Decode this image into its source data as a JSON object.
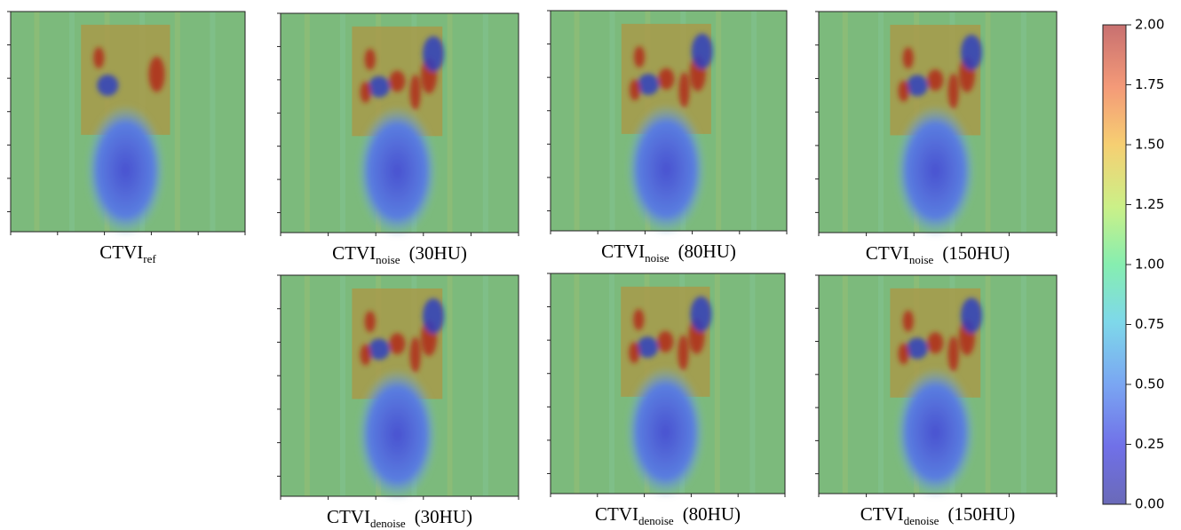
{
  "panels": [
    {
      "caption": {
        "base": "CTVI",
        "sub": "ref"
      }
    },
    {
      "caption": {
        "base": "CTVI",
        "sub": "noise",
        "suffix": "(30HU)"
      }
    },
    {
      "caption": {
        "base": "CTVI",
        "sub": "noise",
        "suffix": "(80HU)"
      }
    },
    {
      "caption": {
        "base": "CTVI",
        "sub": "noise",
        "suffix": "(150HU)"
      }
    },
    {
      "caption": {
        "base": "CTVI",
        "sub": "denoise",
        "suffix": "(30HU)"
      }
    },
    {
      "caption": {
        "base": "CTVI",
        "sub": "denoise",
        "suffix": "(80HU)"
      }
    },
    {
      "caption": {
        "base": "CTVI",
        "sub": "denoise",
        "suffix": "(150HU)"
      }
    }
  ],
  "colorbar": {
    "lim": [
      0,
      2
    ],
    "ticks": [
      {
        "value": 0,
        "label": "0.00"
      },
      {
        "value": 0.25,
        "label": "0.25"
      },
      {
        "value": 0.5,
        "label": "0.50"
      },
      {
        "value": 0.75,
        "label": "0.75"
      },
      {
        "value": 1,
        "label": "1.00"
      },
      {
        "value": 1.25,
        "label": "1.25"
      },
      {
        "value": 1.5,
        "label": "1.50"
      },
      {
        "value": 1.75,
        "label": "1.75"
      },
      {
        "value": 2,
        "label": "2.00"
      }
    ]
  }
}
